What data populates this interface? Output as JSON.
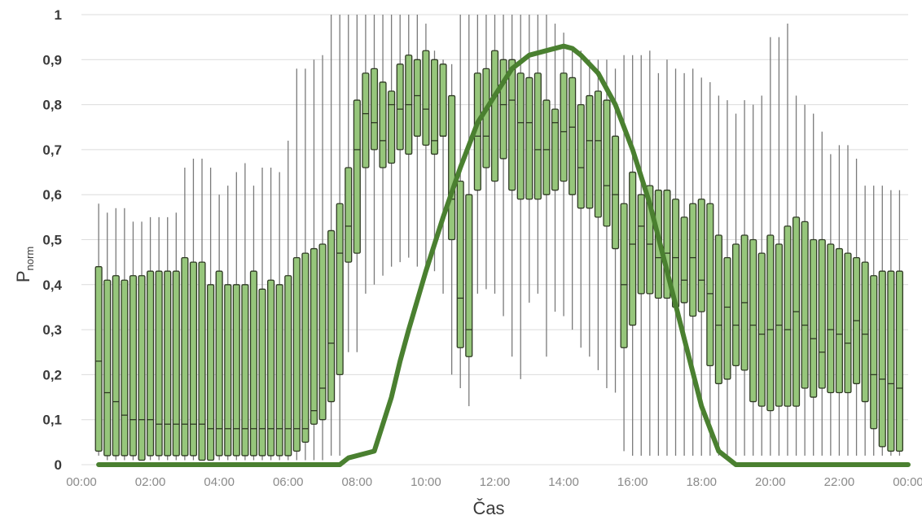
{
  "chart_data": {
    "type": "box",
    "xlabel": "Čas",
    "ylabel": "P",
    "ylabel_sub": "norm",
    "ylim": [
      0,
      1
    ],
    "yticks": [
      "0",
      "0,1",
      "0,2",
      "0,3",
      "0,4",
      "0,5",
      "0,6",
      "0,7",
      "0,8",
      "0,9",
      "1"
    ],
    "xlim_hours": [
      0,
      24
    ],
    "xticks": [
      "00:00",
      "02:00",
      "04:00",
      "06:00",
      "08:00",
      "10:00",
      "12:00",
      "14:00",
      "16:00",
      "18:00",
      "20:00",
      "22:00",
      "00:00"
    ],
    "grid": "horizontal",
    "box_fill": "#96c67b",
    "box_edge": "#2f3a24",
    "whisker_color": "#7a7a7a",
    "line_color": "#4a8030",
    "box_x_hours": [
      0.5,
      0.75,
      1.0,
      1.25,
      1.5,
      1.75,
      2.0,
      2.25,
      2.5,
      2.75,
      3.0,
      3.25,
      3.5,
      3.75,
      4.0,
      4.25,
      4.5,
      4.75,
      5.0,
      5.25,
      5.5,
      5.75,
      6.0,
      6.25,
      6.5,
      6.75,
      7.0,
      7.25,
      7.5,
      7.75,
      8.0,
      8.25,
      8.5,
      8.75,
      9.0,
      9.25,
      9.5,
      9.75,
      10.0,
      10.25,
      10.5,
      10.75,
      11.0,
      11.25,
      11.5,
      11.75,
      12.0,
      12.25,
      12.5,
      12.75,
      13.0,
      13.25,
      13.5,
      13.75,
      14.0,
      14.25,
      14.5,
      14.75,
      15.0,
      15.25,
      15.5,
      15.75,
      16.0,
      16.25,
      16.5,
      16.75,
      17.0,
      17.25,
      17.5,
      17.75,
      18.0,
      18.25,
      18.5,
      18.75,
      19.0,
      19.25,
      19.5,
      19.75,
      20.0,
      20.25,
      20.5,
      20.75,
      21.0,
      21.25,
      21.5,
      21.75,
      22.0,
      22.25,
      22.5,
      22.75,
      23.0,
      23.25,
      23.5,
      23.75
    ],
    "box_whisker_high": [
      0.58,
      0.56,
      0.57,
      0.57,
      0.54,
      0.54,
      0.55,
      0.55,
      0.55,
      0.56,
      0.66,
      0.68,
      0.68,
      0.66,
      0.6,
      0.62,
      0.65,
      0.67,
      0.62,
      0.66,
      0.66,
      0.65,
      0.72,
      0.88,
      0.88,
      0.9,
      0.91,
      1.0,
      1.0,
      1.0,
      1.0,
      1.0,
      1.0,
      1.0,
      1.0,
      1.0,
      1.0,
      1.0,
      0.98,
      0.92,
      0.9,
      0.89,
      1.0,
      1.0,
      1.0,
      1.0,
      1.0,
      1.0,
      1.0,
      1.0,
      1.0,
      1.0,
      1.0,
      0.98,
      0.96,
      0.92,
      0.92,
      0.9,
      0.9,
      0.9,
      0.88,
      0.91,
      0.91,
      0.91,
      0.92,
      0.87,
      0.9,
      0.88,
      0.87,
      0.88,
      0.86,
      0.85,
      0.82,
      0.81,
      0.78,
      0.81,
      0.8,
      0.82,
      0.95,
      0.95,
      0.98,
      0.82,
      0.8,
      0.78,
      0.74,
      0.69,
      0.71,
      0.71,
      0.68,
      0.62,
      0.62,
      0.62,
      0.61,
      0.61
    ],
    "box_q3": [
      0.44,
      0.41,
      0.42,
      0.41,
      0.42,
      0.42,
      0.43,
      0.43,
      0.43,
      0.43,
      0.46,
      0.45,
      0.45,
      0.4,
      0.43,
      0.4,
      0.4,
      0.4,
      0.43,
      0.39,
      0.41,
      0.4,
      0.42,
      0.46,
      0.47,
      0.48,
      0.49,
      0.52,
      0.58,
      0.66,
      0.81,
      0.87,
      0.88,
      0.85,
      0.83,
      0.89,
      0.91,
      0.9,
      0.92,
      0.9,
      0.89,
      0.82,
      0.63,
      0.6,
      0.87,
      0.88,
      0.92,
      0.9,
      0.9,
      0.87,
      0.86,
      0.87,
      0.81,
      0.79,
      0.87,
      0.86,
      0.8,
      0.82,
      0.83,
      0.81,
      0.73,
      0.58,
      0.65,
      0.6,
      0.62,
      0.61,
      0.61,
      0.59,
      0.55,
      0.58,
      0.59,
      0.58,
      0.51,
      0.46,
      0.49,
      0.51,
      0.5,
      0.47,
      0.51,
      0.49,
      0.53,
      0.55,
      0.54,
      0.5,
      0.5,
      0.49,
      0.48,
      0.47,
      0.46,
      0.45,
      0.42,
      0.43,
      0.43,
      0.43
    ],
    "box_median": [
      0.23,
      0.16,
      0.14,
      0.11,
      0.1,
      0.1,
      0.1,
      0.09,
      0.09,
      0.09,
      0.09,
      0.09,
      0.09,
      0.08,
      0.08,
      0.08,
      0.08,
      0.08,
      0.08,
      0.08,
      0.08,
      0.08,
      0.08,
      0.08,
      0.08,
      0.12,
      0.17,
      0.27,
      0.47,
      0.53,
      0.7,
      0.78,
      0.76,
      0.72,
      0.8,
      0.79,
      0.8,
      0.82,
      0.79,
      0.72,
      0.73,
      0.59,
      0.37,
      0.3,
      0.73,
      0.73,
      0.82,
      0.8,
      0.81,
      0.76,
      0.76,
      0.7,
      0.7,
      0.76,
      0.74,
      0.75,
      0.66,
      0.72,
      0.72,
      0.62,
      0.6,
      0.4,
      0.49,
      0.53,
      0.49,
      0.46,
      0.47,
      0.46,
      0.41,
      0.46,
      0.41,
      0.38,
      0.31,
      0.35,
      0.31,
      0.36,
      0.31,
      0.29,
      0.3,
      0.31,
      0.3,
      0.34,
      0.31,
      0.28,
      0.25,
      0.3,
      0.29,
      0.27,
      0.32,
      0.29,
      0.2,
      0.19,
      0.18,
      0.17
    ],
    "box_q1": [
      0.03,
      0.02,
      0.02,
      0.02,
      0.02,
      0.01,
      0.02,
      0.02,
      0.02,
      0.02,
      0.02,
      0.02,
      0.01,
      0.01,
      0.02,
      0.02,
      0.02,
      0.02,
      0.02,
      0.02,
      0.02,
      0.02,
      0.02,
      0.03,
      0.05,
      0.09,
      0.1,
      0.14,
      0.2,
      0.45,
      0.47,
      0.66,
      0.7,
      0.66,
      0.67,
      0.7,
      0.69,
      0.73,
      0.71,
      0.69,
      0.73,
      0.5,
      0.26,
      0.24,
      0.61,
      0.66,
      0.63,
      0.68,
      0.61,
      0.59,
      0.59,
      0.59,
      0.6,
      0.61,
      0.63,
      0.6,
      0.57,
      0.57,
      0.55,
      0.53,
      0.48,
      0.26,
      0.31,
      0.38,
      0.38,
      0.37,
      0.37,
      0.35,
      0.36,
      0.33,
      0.34,
      0.22,
      0.18,
      0.19,
      0.22,
      0.21,
      0.14,
      0.13,
      0.12,
      0.13,
      0.13,
      0.13,
      0.17,
      0.15,
      0.17,
      0.16,
      0.16,
      0.16,
      0.18,
      0.14,
      0.08,
      0.04,
      0.03,
      0.03
    ],
    "box_whisker_low": [
      0.02,
      0.01,
      0.01,
      0.01,
      0.01,
      0.01,
      0.01,
      0.01,
      0.01,
      0.01,
      0.01,
      0.01,
      0.01,
      0.01,
      0.01,
      0.01,
      0.01,
      0.01,
      0.01,
      0.01,
      0.01,
      0.01,
      0.01,
      0.01,
      0.01,
      0.01,
      0.01,
      0.02,
      0.02,
      0.25,
      0.25,
      0.38,
      0.4,
      0.42,
      0.44,
      0.45,
      0.46,
      0.44,
      0.44,
      0.43,
      0.38,
      0.2,
      0.17,
      0.13,
      0.38,
      0.39,
      0.38,
      0.33,
      0.24,
      0.19,
      0.36,
      0.38,
      0.24,
      0.34,
      0.33,
      0.3,
      0.26,
      0.24,
      0.21,
      0.17,
      0.16,
      0.03,
      0.02,
      0.02,
      0.02,
      0.02,
      0.02,
      0.02,
      0.02,
      0.02,
      0.02,
      0.02,
      0.02,
      0.02,
      0.02,
      0.02,
      0.02,
      0.02,
      0.02,
      0.02,
      0.02,
      0.02,
      0.02,
      0.02,
      0.02,
      0.02,
      0.02,
      0.02,
      0.02,
      0.02,
      0.02,
      0.02,
      0.02,
      0.02
    ],
    "line_x_hours": [
      0.5,
      7.5,
      7.75,
      8.5,
      8.75,
      9.0,
      9.25,
      9.5,
      10.0,
      10.5,
      11.0,
      11.5,
      12.0,
      12.5,
      13.0,
      13.5,
      14.0,
      14.25,
      14.5,
      15.0,
      15.5,
      16.0,
      16.5,
      17.0,
      17.5,
      18.0,
      18.5,
      19.0,
      19.25,
      20.0,
      24.0
    ],
    "line_values": [
      0.0,
      0.0,
      0.015,
      0.03,
      0.09,
      0.15,
      0.23,
      0.3,
      0.43,
      0.55,
      0.66,
      0.76,
      0.82,
      0.88,
      0.91,
      0.92,
      0.93,
      0.925,
      0.91,
      0.87,
      0.8,
      0.7,
      0.58,
      0.43,
      0.28,
      0.13,
      0.03,
      0.0,
      0.0,
      0.0,
      0.0
    ]
  }
}
